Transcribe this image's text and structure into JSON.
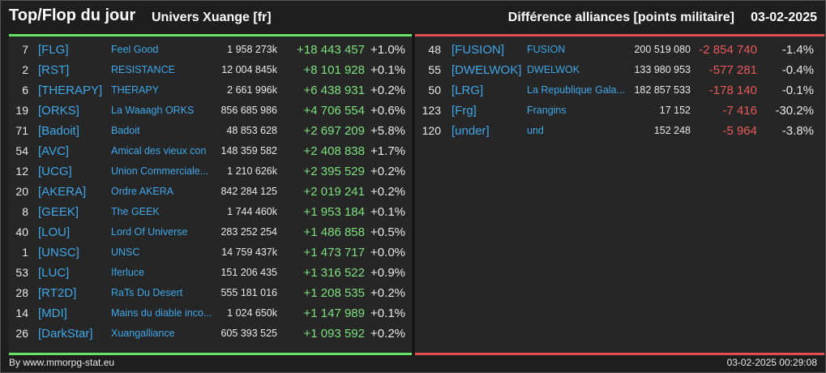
{
  "header": {
    "title": "Top/Flop du jour",
    "universe": "Univers Xuange [fr]",
    "subtitle": "Différence alliances [points militaire]",
    "date": "03-02-2025"
  },
  "colors": {
    "accent_top": "#66e066",
    "accent_flop": "#e05050",
    "tag_link": "#3fa7e8"
  },
  "top": [
    {
      "rank": "7",
      "tag": "[FLG]",
      "name": "Feel Good",
      "points": "1 958 273k",
      "diff": "+18 443 457",
      "pct": "+1.0%"
    },
    {
      "rank": "2",
      "tag": "[RST]",
      "name": "RESISTANCE",
      "points": "12 004 845k",
      "diff": "+8 101 928",
      "pct": "+0.1%"
    },
    {
      "rank": "6",
      "tag": "[THERAPY]",
      "name": "THERAPY",
      "points": "2 661 996k",
      "diff": "+6 438 931",
      "pct": "+0.2%"
    },
    {
      "rank": "19",
      "tag": "[ORKS]",
      "name": "La Waaagh ORKS",
      "points": "856 685 986",
      "diff": "+4 706 554",
      "pct": "+0.6%"
    },
    {
      "rank": "71",
      "tag": "[Badoit]",
      "name": "Badoit",
      "points": "48 853 628",
      "diff": "+2 697 209",
      "pct": "+5.8%"
    },
    {
      "rank": "54",
      "tag": "[AVC]",
      "name": "Amical des vieux con",
      "points": "148 359 582",
      "diff": "+2 408 838",
      "pct": "+1.7%"
    },
    {
      "rank": "12",
      "tag": "[UCG]",
      "name": "Union Commerciale...",
      "points": "1 210 626k",
      "diff": "+2 395 529",
      "pct": "+0.2%"
    },
    {
      "rank": "20",
      "tag": "[AKERA]",
      "name": "Ordre AKERA",
      "points": "842 284 125",
      "diff": "+2 019 241",
      "pct": "+0.2%"
    },
    {
      "rank": "8",
      "tag": "[GEEK]",
      "name": "The GEEK",
      "points": "1 744 460k",
      "diff": "+1 953 184",
      "pct": "+0.1%"
    },
    {
      "rank": "40",
      "tag": "[LOU]",
      "name": "Lord Of Universe",
      "points": "283 252 254",
      "diff": "+1 486 858",
      "pct": "+0.5%"
    },
    {
      "rank": "1",
      "tag": "[UNSC]",
      "name": "UNSC",
      "points": "14 759 437k",
      "diff": "+1 473 717",
      "pct": "+0.0%"
    },
    {
      "rank": "53",
      "tag": "[LUC]",
      "name": "Iferluce",
      "points": "151 206 435",
      "diff": "+1 316 522",
      "pct": "+0.9%"
    },
    {
      "rank": "28",
      "tag": "[RT2D]",
      "name": "RaTs Du Desert",
      "points": "555 181 016",
      "diff": "+1 208 535",
      "pct": "+0.2%"
    },
    {
      "rank": "14",
      "tag": "[MDI]",
      "name": "Mains du diable inco...",
      "points": "1 024 650k",
      "diff": "+1 147 989",
      "pct": "+0.1%"
    },
    {
      "rank": "26",
      "tag": "[DarkStar]",
      "name": "Xuangalliance",
      "points": "605 393 525",
      "diff": "+1 093 592",
      "pct": "+0.2%"
    }
  ],
  "flop": [
    {
      "rank": "48",
      "tag": "[FUSION]",
      "name": "FUSION",
      "points": "200 519 080",
      "diff": "-2 854 740",
      "pct": "-1.4%"
    },
    {
      "rank": "55",
      "tag": "[DWELWOK]",
      "name": "DWELWOK",
      "points": "133 980 953",
      "diff": "-577 281",
      "pct": "-0.4%"
    },
    {
      "rank": "50",
      "tag": "[LRG]",
      "name": "La Republique Gala...",
      "points": "182 857 533",
      "diff": "-178 140",
      "pct": "-0.1%"
    },
    {
      "rank": "123",
      "tag": "[Frg]",
      "name": "Frangins",
      "points": "17 152",
      "diff": "-7 416",
      "pct": "-30.2%"
    },
    {
      "rank": "120",
      "tag": "[under]",
      "name": "und",
      "points": "152 248",
      "diff": "-5 964",
      "pct": "-3.8%"
    }
  ],
  "footer": {
    "credit": "By www.mmorpg-stat.eu",
    "timestamp": "03-02-2025 00:29:08"
  }
}
